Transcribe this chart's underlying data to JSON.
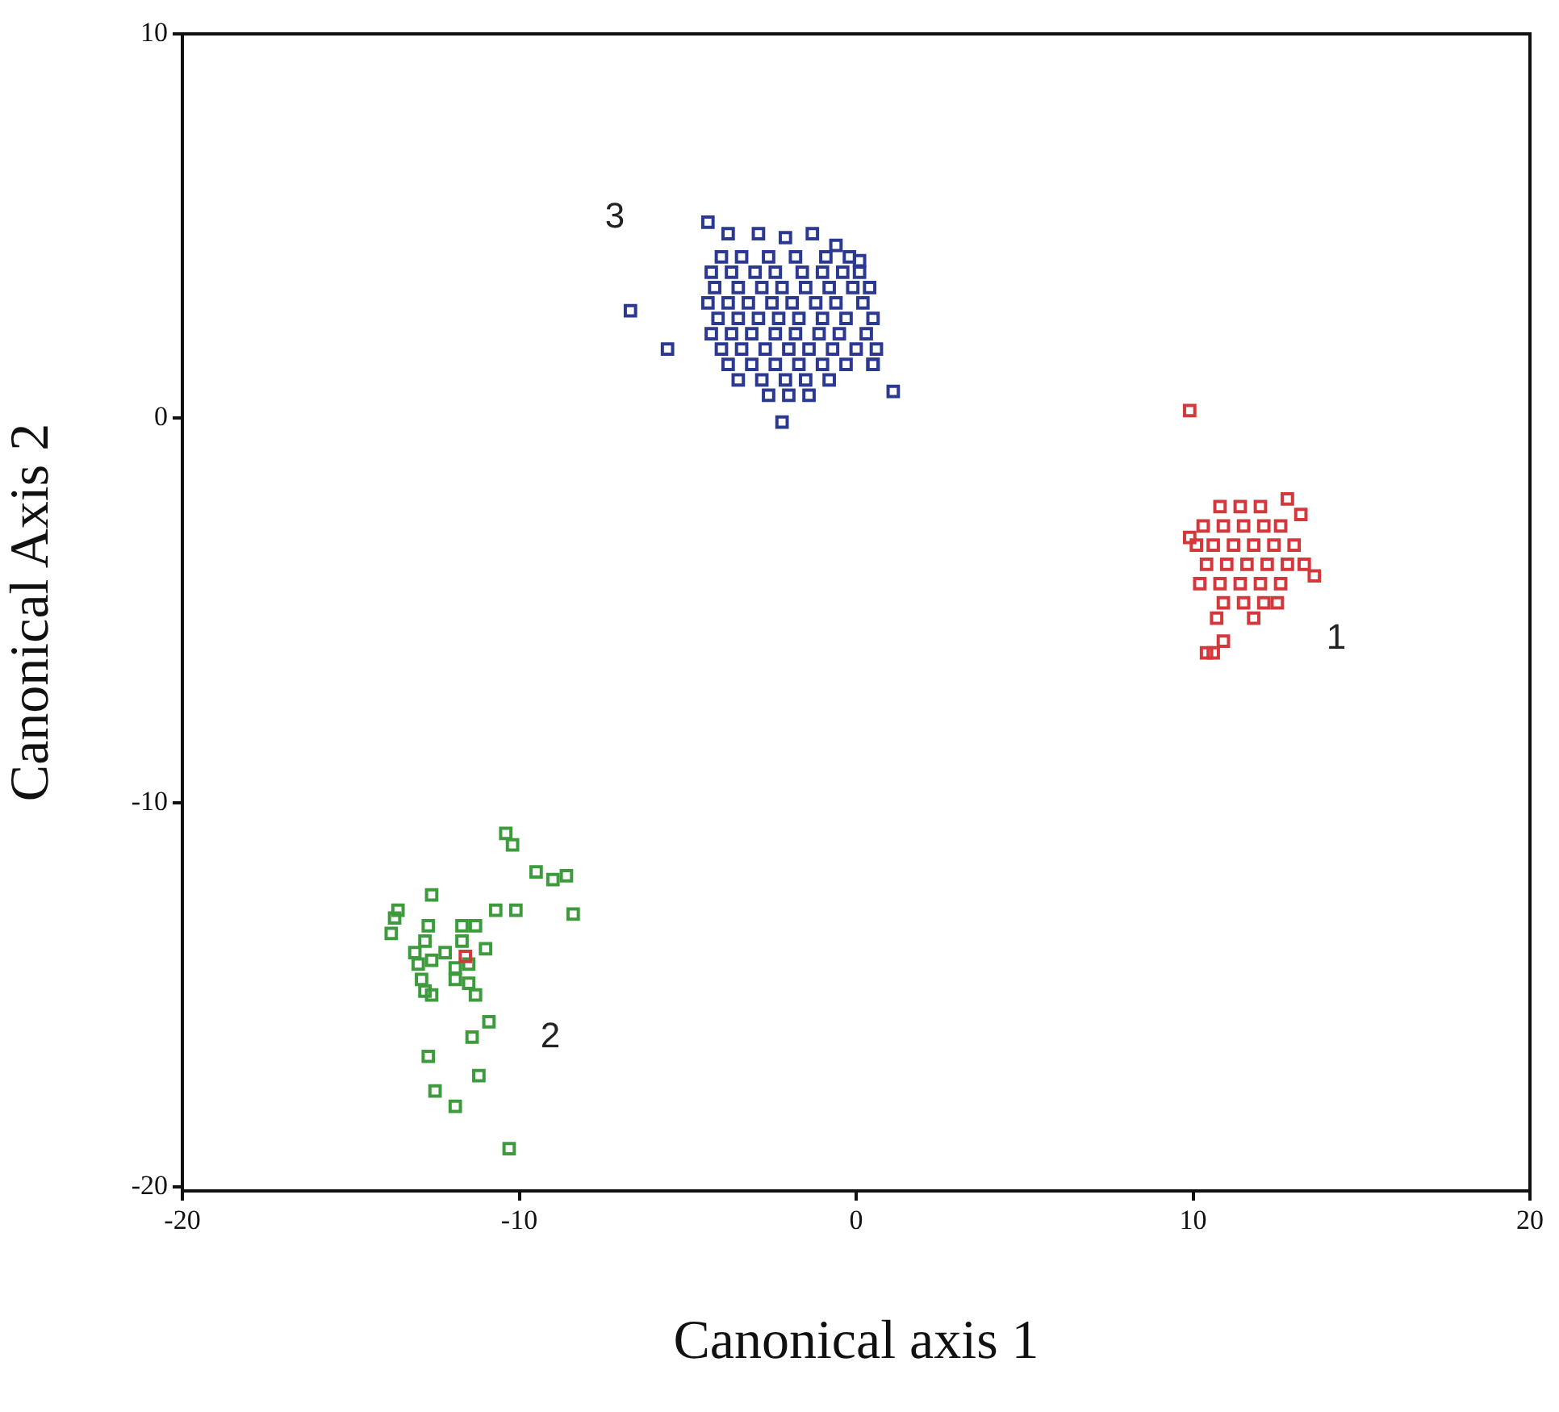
{
  "chart_data": {
    "type": "scatter",
    "xlabel": "Canonical axis 1",
    "ylabel": "Canonical Axis 2",
    "xlim": [
      -20,
      20
    ],
    "ylim": [
      -20.1,
      10
    ],
    "xticks": [
      -20,
      -10,
      0,
      10,
      20
    ],
    "yticks": [
      -20,
      -10,
      0,
      10
    ],
    "grid": false,
    "marker": "square",
    "series": [
      {
        "color": "#2b3990",
        "x": [
          -6.7,
          -5.6,
          -4.4,
          1.1,
          -2.2,
          0.5,
          -3.8,
          -2.9,
          -2.1,
          -1.3,
          -0.6,
          0.1,
          -4.0,
          -3.4,
          -2.6,
          -1.8,
          -0.9,
          -0.2,
          -4.3,
          -3.7,
          -3.0,
          -2.4,
          -1.6,
          -1.0,
          -0.4,
          0.1,
          -4.2,
          -3.5,
          -2.8,
          -2.2,
          -1.5,
          -0.8,
          -0.1,
          0.4,
          -4.4,
          -3.8,
          -3.2,
          -2.5,
          -1.9,
          -1.2,
          -0.6,
          0.2,
          -4.1,
          -3.5,
          -2.9,
          -2.3,
          -1.7,
          -1.0,
          -0.3,
          0.5,
          -4.3,
          -3.7,
          -3.1,
          -2.4,
          -1.8,
          -1.1,
          -0.5,
          0.3,
          -4.0,
          -3.4,
          -2.7,
          -2.0,
          -1.4,
          -0.7,
          0.0,
          0.6,
          -3.8,
          -3.1,
          -2.4,
          -1.7,
          -1.0,
          -0.3,
          0.5,
          -3.5,
          -2.8,
          -2.1,
          -1.5,
          -0.8,
          -2.6,
          -2.0,
          -1.4
        ],
        "values": [
          2.8,
          1.8,
          5.1,
          0.7,
          -0.1,
          1.4,
          4.8,
          4.8,
          4.7,
          4.8,
          4.5,
          4.1,
          4.2,
          4.2,
          4.2,
          4.2,
          4.2,
          4.2,
          3.8,
          3.8,
          3.8,
          3.8,
          3.8,
          3.8,
          3.8,
          3.8,
          3.4,
          3.4,
          3.4,
          3.4,
          3.4,
          3.4,
          3.4,
          3.4,
          3.0,
          3.0,
          3.0,
          3.0,
          3.0,
          3.0,
          3.0,
          3.0,
          2.6,
          2.6,
          2.6,
          2.6,
          2.6,
          2.6,
          2.6,
          2.6,
          2.2,
          2.2,
          2.2,
          2.2,
          2.2,
          2.2,
          2.2,
          2.2,
          1.8,
          1.8,
          1.8,
          1.8,
          1.8,
          1.8,
          1.8,
          1.8,
          1.4,
          1.4,
          1.4,
          1.4,
          1.4,
          1.4,
          1.4,
          1.0,
          1.0,
          1.0,
          1.0,
          1.0,
          0.6,
          0.6,
          0.6
        ]
      },
      {
        "color": "#d2383c",
        "x": [
          9.9,
          12.8,
          13.2,
          13.6,
          9.9,
          10.7,
          10.9,
          10.4,
          10.6,
          11.8,
          10.8,
          11.4,
          12.0,
          10.3,
          10.9,
          11.5,
          12.1,
          12.6,
          10.1,
          10.6,
          11.2,
          11.8,
          12.4,
          13.0,
          10.4,
          11.0,
          11.6,
          12.2,
          12.8,
          13.3,
          10.2,
          10.8,
          11.4,
          12.0,
          12.6,
          10.9,
          11.5,
          12.1,
          12.5,
          -11.6
        ],
        "values": [
          0.2,
          -2.1,
          -2.5,
          -4.1,
          -3.1,
          -5.2,
          -5.8,
          -6.1,
          -6.1,
          -5.2,
          -2.3,
          -2.3,
          -2.3,
          -2.8,
          -2.8,
          -2.8,
          -2.8,
          -2.8,
          -3.3,
          -3.3,
          -3.3,
          -3.3,
          -3.3,
          -3.3,
          -3.8,
          -3.8,
          -3.8,
          -3.8,
          -3.8,
          -3.8,
          -4.3,
          -4.3,
          -4.3,
          -4.3,
          -4.3,
          -4.8,
          -4.8,
          -4.8,
          -4.8,
          -14.0
        ]
      },
      {
        "color": "#3d9a3d",
        "x": [
          -10.4,
          -10.2,
          -9.5,
          -9.0,
          -8.6,
          -8.4,
          -12.6,
          -10.7,
          -10.1,
          -13.6,
          -13.7,
          -13.8,
          -12.7,
          -11.7,
          -11.3,
          -13.1,
          -12.8,
          -12.2,
          -11.7,
          -11.0,
          -13.0,
          -12.6,
          -11.9,
          -11.5,
          -12.9,
          -12.8,
          -12.6,
          -11.9,
          -11.5,
          -11.3,
          -10.9,
          -11.4,
          -12.7,
          -11.2,
          -12.5,
          -11.9,
          -10.3
        ],
        "values": [
          -10.8,
          -11.1,
          -11.8,
          -12.0,
          -11.9,
          -12.9,
          -12.4,
          -12.8,
          -12.8,
          -12.8,
          -13.0,
          -13.4,
          -13.2,
          -13.2,
          -13.2,
          -13.9,
          -13.6,
          -13.9,
          -13.6,
          -13.8,
          -14.2,
          -14.1,
          -14.3,
          -14.2,
          -14.6,
          -14.9,
          -15.0,
          -14.6,
          -14.7,
          -15.0,
          -15.7,
          -16.1,
          -16.6,
          -17.1,
          -17.5,
          -17.9,
          -19.0
        ]
      }
    ],
    "annotations": [
      "3",
      "1",
      "2"
    ]
  }
}
